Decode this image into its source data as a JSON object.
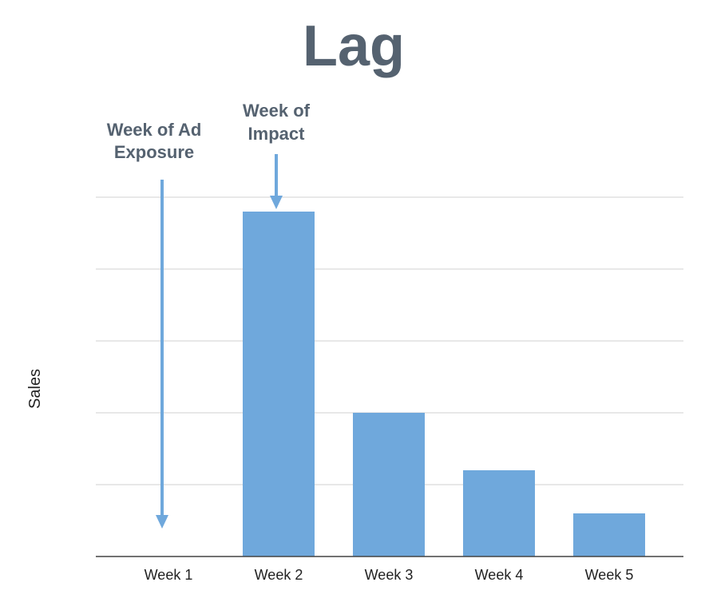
{
  "chart_data": {
    "type": "bar",
    "title": "Lag",
    "xlabel": "",
    "ylabel": "Sales",
    "categories": [
      "Week 1",
      "Week 2",
      "Week 3",
      "Week 4",
      "Week 5"
    ],
    "values": [
      0,
      4.8,
      2.0,
      1.2,
      0.6
    ],
    "ylim": [
      0,
      5
    ],
    "grid": true,
    "bar_color": "#6fa8dc",
    "annotations": [
      {
        "text": [
          "Week of Ad",
          "Exposure"
        ],
        "category": "Week 1"
      },
      {
        "text": [
          "Week of",
          "Impact"
        ],
        "category": "Week 2"
      }
    ]
  },
  "colors": {
    "title": "#556270",
    "annotation": "#556270",
    "arrow": "#6fa8dc",
    "gridline": "#d0d0d0",
    "axis": "#444444"
  }
}
